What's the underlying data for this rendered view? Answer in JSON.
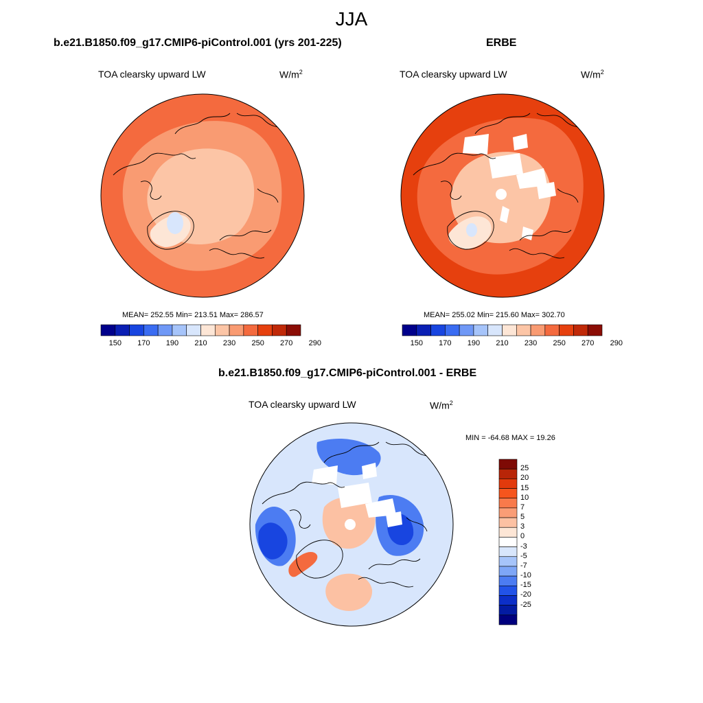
{
  "figure": {
    "season_title": "JJA"
  },
  "panels": {
    "model": {
      "title": "b.e21.B1850.f09_g17.CMIP6-piControl.001 (yrs 201-225)",
      "variable": "TOA clearsky upward LW",
      "units": "W/m",
      "units_sup": "2",
      "stats": "MEAN= 252.55  Min= 213.51  Max= 286.57"
    },
    "obs": {
      "title": "ERBE",
      "variable": "TOA clearsky upward LW",
      "units": "W/m",
      "units_sup": "2",
      "stats": "MEAN= 255.02  Min= 215.60  Max= 302.70"
    },
    "diff": {
      "title": "b.e21.B1850.f09_g17.CMIP6-piControl.001 - ERBE",
      "variable": "TOA clearsky upward LW",
      "units": "W/m",
      "units_sup": "2",
      "stats": "MIN = -64.68 MAX =  19.26"
    }
  },
  "colorbars": {
    "absolute": {
      "tick_labels": [
        "150",
        "170",
        "190",
        "210",
        "230",
        "250",
        "270",
        "290"
      ],
      "colors": [
        "#00008b",
        "#0a1fb4",
        "#1845e0",
        "#3a6cf2",
        "#6f98f6",
        "#a6c4fa",
        "#d8e6fc",
        "#fde6d6",
        "#fcc5a6",
        "#f99b72",
        "#f46a3e",
        "#e6400e",
        "#c02908",
        "#8b0d05"
      ]
    },
    "difference": {
      "tick_labels": [
        "25",
        "20",
        "15",
        "10",
        "7",
        "5",
        "3",
        "0",
        "-3",
        "-5",
        "-7",
        "-10",
        "-15",
        "-20",
        "-25"
      ],
      "colors": [
        "#7e0a05",
        "#b82508",
        "#e23a0c",
        "#f6551d",
        "#f87a4b",
        "#fa9d76",
        "#fcc1a3",
        "#fde6d6",
        "#ffffff",
        "#d8e6fc",
        "#a6c4fa",
        "#7ea6f7",
        "#4c7cf2",
        "#2253e8",
        "#0c2fc8",
        "#031ba2",
        "#00007e"
      ]
    }
  },
  "map_colors": {
    "model": {
      "outer": "#f46a3e",
      "mid": "#f99b72",
      "inner": "#fcc5a6",
      "greenland": "#fde6d6",
      "greenland_core": "#d8e6fc"
    },
    "obs": {
      "outer": "#e6400e",
      "mid": "#f46a3e",
      "inner": "#fcc5a6",
      "greenland": "#fde6d6",
      "greenland_core": "#d8e6fc"
    },
    "diff": {
      "base": "#d8e6fc",
      "neg": "#4c7cf2",
      "neg_strong": "#1845e0",
      "pos": "#fcc1a3",
      "pos_strong": "#f46a3e"
    }
  }
}
